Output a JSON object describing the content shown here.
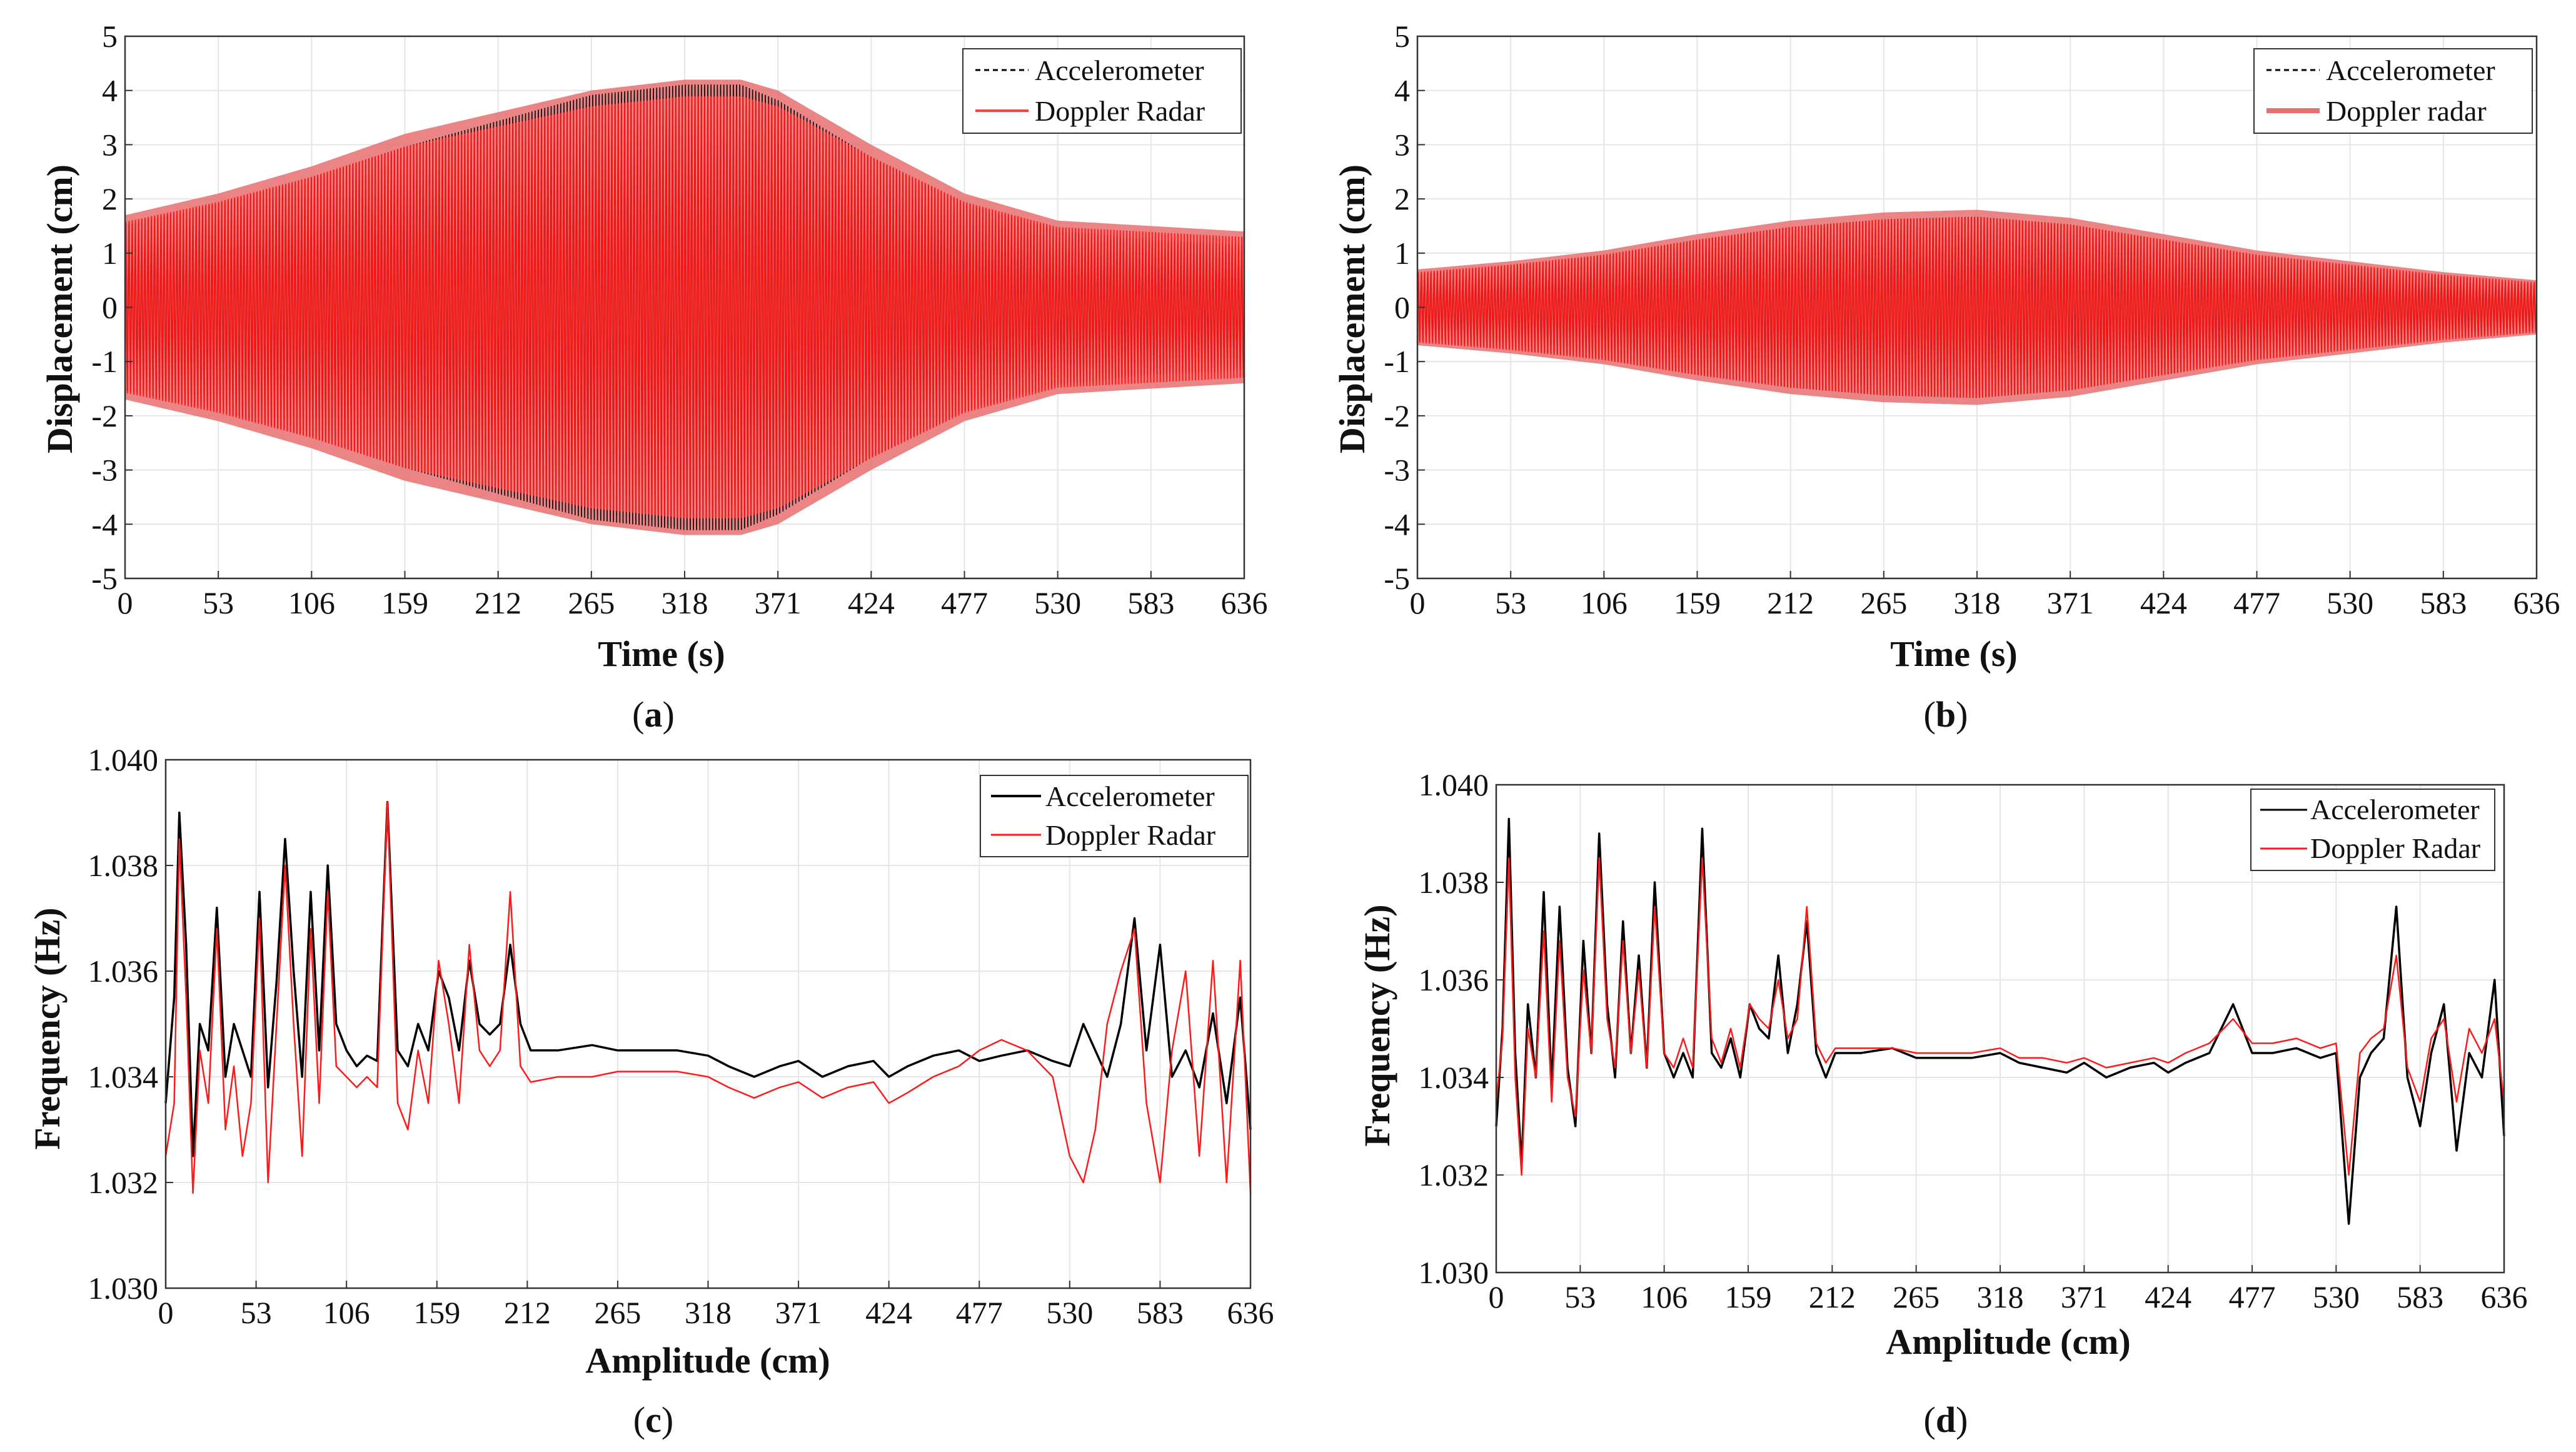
{
  "colors": {
    "accelerometer": "#000000",
    "radar": "#ff1a1a",
    "radar_band": "#e87070"
  },
  "chart_data": [
    {
      "id": "a",
      "type": "line",
      "panel_label": "a",
      "xlabel": "Time (s)",
      "ylabel": "Displacement (cm)",
      "xlim": [
        0,
        636
      ],
      "ylim": [
        -5,
        5
      ],
      "xticks": [
        0,
        53,
        106,
        159,
        212,
        265,
        318,
        371,
        424,
        477,
        530,
        583,
        636
      ],
      "yticks": [
        -5,
        -4,
        -3,
        -2,
        -1,
        0,
        1,
        2,
        3,
        4,
        5
      ],
      "legend": [
        "Accelerometer",
        "Doppler Radar"
      ],
      "envelope": {
        "x": [
          0,
          53,
          106,
          159,
          212,
          265,
          318,
          350,
          371,
          424,
          477,
          530,
          583,
          636
        ],
        "accelerometer": [
          1.6,
          2.0,
          2.5,
          3.1,
          3.6,
          4.1,
          4.3,
          4.3,
          4.0,
          2.9,
          2.0,
          1.5,
          1.3,
          1.2
        ],
        "radar": [
          1.7,
          2.1,
          2.6,
          3.2,
          3.6,
          4.0,
          4.2,
          4.2,
          4.0,
          3.0,
          2.1,
          1.6,
          1.5,
          1.4
        ]
      }
    },
    {
      "id": "b",
      "type": "line",
      "panel_label": "b",
      "xlabel": "Time (s)",
      "ylabel": "Displacement (cm)",
      "xlim": [
        0,
        636
      ],
      "ylim": [
        -5,
        5
      ],
      "xticks": [
        0,
        53,
        106,
        159,
        212,
        265,
        318,
        371,
        424,
        477,
        530,
        583,
        636
      ],
      "yticks": [
        -5,
        -4,
        -3,
        -2,
        -1,
        0,
        1,
        2,
        3,
        4,
        5
      ],
      "legend": [
        "Accelerometer",
        "Doppler radar"
      ],
      "envelope": {
        "x": [
          0,
          53,
          106,
          159,
          212,
          265,
          318,
          371,
          424,
          477,
          530,
          583,
          636
        ],
        "accelerometer": [
          0.65,
          0.8,
          1.0,
          1.3,
          1.55,
          1.7,
          1.75,
          1.6,
          1.3,
          1.0,
          0.8,
          0.6,
          0.45
        ],
        "radar": [
          0.7,
          0.85,
          1.05,
          1.35,
          1.6,
          1.75,
          1.8,
          1.65,
          1.35,
          1.05,
          0.85,
          0.65,
          0.5
        ]
      }
    },
    {
      "id": "c",
      "type": "line",
      "panel_label": "c",
      "xlabel": "Amplitude (cm)",
      "ylabel": "Frequency (Hz)",
      "xlim": [
        0,
        636
      ],
      "ylim": [
        1.03,
        1.04
      ],
      "xticks": [
        0,
        53,
        106,
        159,
        212,
        265,
        318,
        371,
        424,
        477,
        530,
        583,
        636
      ],
      "yticks": [
        1.03,
        1.032,
        1.034,
        1.036,
        1.038,
        1.04
      ],
      "legend": [
        "Accelerometer",
        "Doppler Radar"
      ],
      "series": [
        {
          "name": "Accelerometer",
          "x": [
            0,
            5,
            8,
            12,
            16,
            20,
            25,
            30,
            35,
            40,
            45,
            50,
            55,
            60,
            65,
            70,
            75,
            80,
            85,
            90,
            95,
            100,
            106,
            112,
            118,
            124,
            130,
            136,
            142,
            148,
            154,
            160,
            166,
            172,
            178,
            184,
            190,
            196,
            202,
            208,
            214,
            230,
            250,
            265,
            280,
            300,
            318,
            330,
            345,
            360,
            371,
            385,
            400,
            415,
            424,
            435,
            450,
            465,
            477,
            490,
            505,
            520,
            530,
            538,
            545,
            552,
            560,
            568,
            575,
            583,
            590,
            598,
            606,
            614,
            622,
            630,
            636
          ],
          "y": [
            1.0335,
            1.0355,
            1.039,
            1.0365,
            1.0325,
            1.035,
            1.0345,
            1.0372,
            1.034,
            1.035,
            1.0345,
            1.034,
            1.0375,
            1.0338,
            1.0358,
            1.0385,
            1.036,
            1.034,
            1.0375,
            1.0345,
            1.038,
            1.035,
            1.0345,
            1.0342,
            1.0344,
            1.0343,
            1.0392,
            1.0345,
            1.0342,
            1.035,
            1.0345,
            1.036,
            1.0355,
            1.0345,
            1.0362,
            1.035,
            1.0348,
            1.035,
            1.0365,
            1.035,
            1.0345,
            1.0345,
            1.0346,
            1.0345,
            1.0345,
            1.0345,
            1.0344,
            1.0342,
            1.034,
            1.0342,
            1.0343,
            1.034,
            1.0342,
            1.0343,
            1.034,
            1.0342,
            1.0344,
            1.0345,
            1.0343,
            1.0344,
            1.0345,
            1.0343,
            1.0342,
            1.035,
            1.0345,
            1.034,
            1.035,
            1.037,
            1.0345,
            1.0365,
            1.034,
            1.0345,
            1.0338,
            1.0352,
            1.0335,
            1.0355,
            1.033
          ]
        },
        {
          "name": "Doppler Radar",
          "x": [
            0,
            5,
            8,
            12,
            16,
            20,
            25,
            30,
            35,
            40,
            45,
            50,
            55,
            60,
            65,
            70,
            75,
            80,
            85,
            90,
            95,
            100,
            106,
            112,
            118,
            124,
            130,
            136,
            142,
            148,
            154,
            160,
            166,
            172,
            178,
            184,
            190,
            196,
            202,
            208,
            214,
            230,
            250,
            265,
            280,
            300,
            318,
            330,
            345,
            360,
            371,
            385,
            400,
            415,
            424,
            435,
            450,
            465,
            477,
            490,
            505,
            520,
            530,
            538,
            545,
            552,
            560,
            568,
            575,
            583,
            590,
            598,
            606,
            614,
            622,
            630,
            636
          ],
          "y": [
            1.0325,
            1.0335,
            1.0385,
            1.0355,
            1.0318,
            1.0345,
            1.0335,
            1.0368,
            1.033,
            1.0342,
            1.0325,
            1.0335,
            1.037,
            1.032,
            1.035,
            1.038,
            1.035,
            1.0325,
            1.0368,
            1.0335,
            1.0375,
            1.0342,
            1.034,
            1.0338,
            1.034,
            1.0338,
            1.0392,
            1.0335,
            1.033,
            1.0345,
            1.0335,
            1.0362,
            1.035,
            1.0335,
            1.0365,
            1.0345,
            1.0342,
            1.0345,
            1.0375,
            1.0342,
            1.0339,
            1.034,
            1.034,
            1.0341,
            1.0341,
            1.0341,
            1.034,
            1.0338,
            1.0336,
            1.0338,
            1.0339,
            1.0336,
            1.0338,
            1.0339,
            1.0335,
            1.0337,
            1.034,
            1.0342,
            1.0345,
            1.0347,
            1.0345,
            1.034,
            1.0325,
            1.032,
            1.033,
            1.035,
            1.036,
            1.0368,
            1.0335,
            1.032,
            1.0345,
            1.036,
            1.0325,
            1.0362,
            1.032,
            1.0362,
            1.0318
          ]
        }
      ]
    },
    {
      "id": "d",
      "type": "line",
      "panel_label": "d",
      "xlabel": "Amplitude (cm)",
      "ylabel": "Frequency (Hz)",
      "xlim": [
        0,
        636
      ],
      "ylim": [
        1.03,
        1.04
      ],
      "xticks": [
        0,
        53,
        106,
        159,
        212,
        265,
        318,
        371,
        424,
        477,
        530,
        583,
        636
      ],
      "yticks": [
        1.03,
        1.032,
        1.034,
        1.036,
        1.038,
        1.04
      ],
      "legend": [
        "Accelerometer",
        "Doppler Radar"
      ],
      "series": [
        {
          "name": "Accelerometer",
          "x": [
            0,
            4,
            8,
            12,
            16,
            20,
            25,
            30,
            35,
            40,
            45,
            50,
            55,
            60,
            65,
            70,
            75,
            80,
            85,
            90,
            95,
            100,
            106,
            112,
            118,
            124,
            130,
            136,
            142,
            148,
            154,
            160,
            166,
            172,
            178,
            184,
            190,
            196,
            202,
            208,
            214,
            230,
            250,
            265,
            280,
            300,
            318,
            330,
            345,
            360,
            371,
            385,
            400,
            415,
            424,
            435,
            450,
            465,
            477,
            490,
            505,
            520,
            530,
            538,
            545,
            552,
            560,
            568,
            575,
            583,
            590,
            598,
            606,
            614,
            622,
            630,
            636
          ],
          "y": [
            1.033,
            1.035,
            1.0393,
            1.0345,
            1.0322,
            1.0355,
            1.034,
            1.0378,
            1.0338,
            1.0375,
            1.0342,
            1.033,
            1.0368,
            1.0345,
            1.039,
            1.0355,
            1.034,
            1.0372,
            1.0345,
            1.0365,
            1.0342,
            1.038,
            1.0345,
            1.034,
            1.0345,
            1.034,
            1.0391,
            1.0345,
            1.0342,
            1.0348,
            1.034,
            1.0355,
            1.035,
            1.0348,
            1.0365,
            1.0345,
            1.0355,
            1.0372,
            1.0345,
            1.034,
            1.0345,
            1.0345,
            1.0346,
            1.0344,
            1.0344,
            1.0344,
            1.0345,
            1.0343,
            1.0342,
            1.0341,
            1.0343,
            1.034,
            1.0342,
            1.0343,
            1.0341,
            1.0343,
            1.0345,
            1.0355,
            1.0345,
            1.0345,
            1.0346,
            1.0344,
            1.0345,
            1.031,
            1.034,
            1.0345,
            1.0348,
            1.0375,
            1.034,
            1.033,
            1.0345,
            1.0355,
            1.0325,
            1.0345,
            1.034,
            1.036,
            1.0328
          ]
        },
        {
          "name": "Doppler Radar",
          "x": [
            0,
            4,
            8,
            12,
            16,
            20,
            25,
            30,
            35,
            40,
            45,
            50,
            55,
            60,
            65,
            70,
            75,
            80,
            85,
            90,
            95,
            100,
            106,
            112,
            118,
            124,
            130,
            136,
            142,
            148,
            154,
            160,
            166,
            172,
            178,
            184,
            190,
            196,
            202,
            208,
            214,
            230,
            250,
            265,
            280,
            300,
            318,
            330,
            345,
            360,
            371,
            385,
            400,
            415,
            424,
            435,
            450,
            465,
            477,
            490,
            505,
            520,
            530,
            538,
            545,
            552,
            560,
            568,
            575,
            583,
            590,
            598,
            606,
            614,
            622,
            630,
            636
          ],
          "y": [
            1.0335,
            1.0348,
            1.0385,
            1.034,
            1.032,
            1.035,
            1.034,
            1.037,
            1.0335,
            1.0368,
            1.034,
            1.0332,
            1.0362,
            1.0345,
            1.0385,
            1.0352,
            1.0342,
            1.0368,
            1.0345,
            1.0362,
            1.0342,
            1.0375,
            1.0345,
            1.0342,
            1.0348,
            1.0342,
            1.0385,
            1.0348,
            1.0343,
            1.035,
            1.0342,
            1.0355,
            1.0352,
            1.035,
            1.036,
            1.0348,
            1.0352,
            1.0375,
            1.0347,
            1.0343,
            1.0346,
            1.0346,
            1.0346,
            1.0345,
            1.0345,
            1.0345,
            1.0346,
            1.0344,
            1.0344,
            1.0343,
            1.0344,
            1.0342,
            1.0343,
            1.0344,
            1.0343,
            1.0345,
            1.0347,
            1.0352,
            1.0347,
            1.0347,
            1.0348,
            1.0346,
            1.0347,
            1.032,
            1.0345,
            1.0348,
            1.035,
            1.0365,
            1.0342,
            1.0335,
            1.0348,
            1.0352,
            1.0335,
            1.035,
            1.0345,
            1.0352,
            1.0335
          ]
        }
      ]
    }
  ]
}
